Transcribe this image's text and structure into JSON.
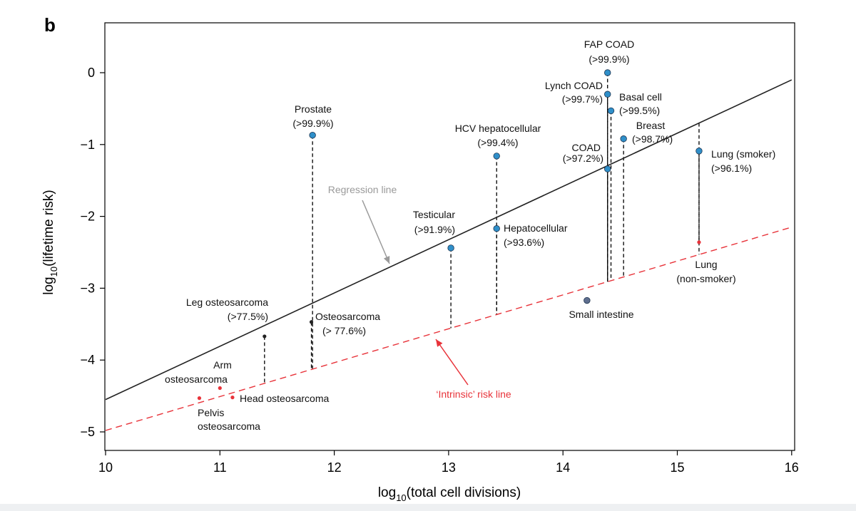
{
  "panel_label": "b",
  "colors": {
    "regression": "#222222",
    "intrinsic": "#e8333a",
    "blue_point": "#2f8fc9",
    "grey_annot": "#9a9a9a",
    "small_intestine": "#5f6f8f"
  },
  "chart_data": {
    "type": "scatter",
    "xlabel": "log10(total cell divisions)",
    "ylabel": "log10(lifetime risk)",
    "xlim": [
      10,
      16
    ],
    "ylim": [
      -5.2,
      0.7
    ],
    "xticks": [
      10,
      11,
      12,
      13,
      14,
      15,
      16
    ],
    "yticks": [
      0,
      -1,
      -2,
      -3,
      -4,
      -5
    ],
    "xtick_labels": [
      "10",
      "11",
      "12",
      "13",
      "14",
      "15",
      "16"
    ],
    "ytick_labels": [
      "0",
      "−1",
      "−2",
      "−3",
      "−4",
      "−5"
    ],
    "regression_line": {
      "label": "Regression line",
      "x": [
        10,
        16
      ],
      "y": [
        -4.55,
        -0.1
      ]
    },
    "intrinsic_line": {
      "label": "‘Intrinsic’ risk line",
      "x": [
        10,
        16
      ],
      "y": [
        -4.98,
        -2.15
      ]
    },
    "points": [
      {
        "name": "FAP COAD",
        "pct": "(>99.9%)",
        "x": 14.39,
        "y": 0.0,
        "color": "blue"
      },
      {
        "name": "Lynch COAD",
        "pct": "(>99.7%)",
        "x": 14.39,
        "y": -0.3,
        "color": "blue"
      },
      {
        "name": "Basal cell",
        "pct": "(>99.5%)",
        "x": 14.42,
        "y": -0.53,
        "color": "blue"
      },
      {
        "name": "Breast",
        "pct": "(>98.7%)",
        "x": 14.53,
        "y": -0.92,
        "color": "blue"
      },
      {
        "name": "COAD",
        "pct": "(>97.2%)",
        "x": 14.39,
        "y": -1.34,
        "color": "blue"
      },
      {
        "name": "Lung (smoker)",
        "pct": "(>96.1%)",
        "x": 15.19,
        "y": -1.09,
        "color": "blue"
      },
      {
        "name": "Prostate",
        "pct": "(>99.9%)",
        "x": 11.81,
        "y": -0.87,
        "color": "blue"
      },
      {
        "name": "HCV hepatocellular",
        "pct": "(>99.4%)",
        "x": 13.42,
        "y": -1.16,
        "color": "blue"
      },
      {
        "name": "Hepatocellular",
        "pct": "(>93.6%)",
        "x": 13.42,
        "y": -2.17,
        "color": "blue"
      },
      {
        "name": "Testicular",
        "pct": "(>91.9%)",
        "x": 13.02,
        "y": -2.44,
        "color": "blue"
      },
      {
        "name": "Leg osteosarcoma",
        "pct": "(>77.5%)",
        "x": 11.39,
        "y": -3.67,
        "color": "black"
      },
      {
        "name": "Osteosarcoma",
        "pct": "(> 77.6%)",
        "x": 11.8,
        "y": -3.47,
        "color": "black"
      },
      {
        "name": "Lung",
        "pct": "(non-smoker)",
        "x": 15.19,
        "y": -2.36,
        "color": "red"
      },
      {
        "name": "Small intestine",
        "pct": "",
        "x": 14.21,
        "y": -3.17,
        "color": "slate"
      },
      {
        "name": "Arm",
        "pct": "osteosarcoma",
        "x": 11.0,
        "y": -4.39,
        "color": "red"
      },
      {
        "name": "Head osteosarcoma",
        "pct": "",
        "x": 11.11,
        "y": -4.52,
        "color": "red"
      },
      {
        "name": "Pelvis",
        "pct": "osteosarcoma",
        "x": 10.82,
        "y": -4.53,
        "color": "red"
      }
    ]
  }
}
